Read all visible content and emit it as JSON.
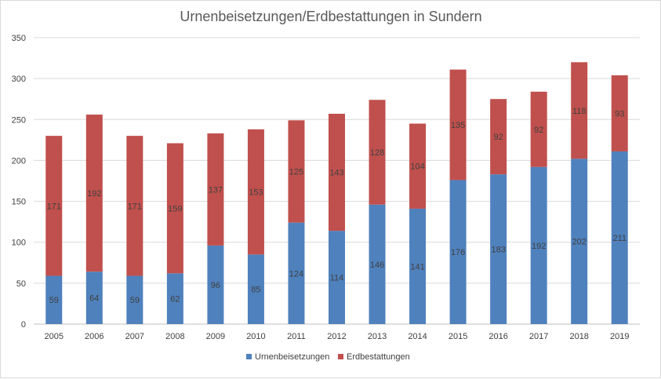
{
  "chart_data": {
    "type": "bar",
    "stacked": true,
    "title": "Urnenbeisetzungen/Erdbestattungen in Sundern",
    "xlabel": "",
    "ylabel": "",
    "categories": [
      "2005",
      "2006",
      "2007",
      "2008",
      "2009",
      "2010",
      "2011",
      "2012",
      "2013",
      "2014",
      "2015",
      "2016",
      "2017",
      "2018",
      "2019"
    ],
    "series": [
      {
        "name": "Urnenbeisetzungen",
        "color": "#4f81bd",
        "values": [
          59,
          64,
          59,
          62,
          96,
          85,
          124,
          114,
          146,
          141,
          176,
          183,
          192,
          202,
          211
        ]
      },
      {
        "name": "Erdbestattungen",
        "color": "#c0504d",
        "values": [
          171,
          192,
          171,
          159,
          137,
          153,
          125,
          143,
          128,
          104,
          135,
          92,
          92,
          118,
          93
        ]
      }
    ],
    "ylim": [
      0,
      350
    ],
    "yticks": [
      0,
      50,
      100,
      150,
      200,
      250,
      300,
      350
    ],
    "grid": true,
    "legend_position": "bottom",
    "data_labels": true
  }
}
